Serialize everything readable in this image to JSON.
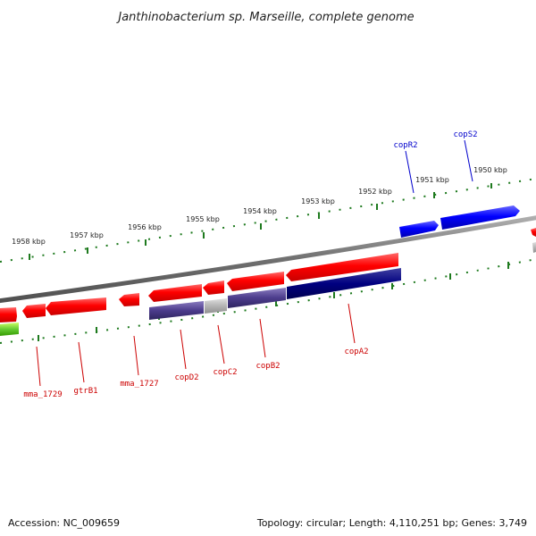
{
  "title": "Janthinobacterium sp. Marseille, complete genome",
  "footer": {
    "accession": "Accession: NC_009659",
    "summary": "Topology: circular; Length: 4,110,251 bp; Genes: 3,749"
  },
  "ticks": [
    "1950 kbp",
    "1951 kbp",
    "1952 kbp",
    "1953 kbp",
    "1954 kbp",
    "1955 kbp",
    "1956 kbp",
    "1957 kbp",
    "1958 kbp"
  ],
  "genes_top": [
    "copR2",
    "copS2"
  ],
  "genes_bottom": [
    "mma_1729",
    "gtrB1",
    "mma_1727",
    "copD2",
    "copC2",
    "copB2",
    "copA2"
  ],
  "colors": {
    "forward_cds": "#ff0000",
    "top_strand": "#0000ff",
    "cog_dark": "#000080",
    "cog_purple": "#4c3c8c",
    "cog_gray": "#b4b4b4",
    "cog_green": "#66cc33",
    "backbone": "#808080",
    "tick": "#1e7a1e",
    "label_top": "#0000cc",
    "label_bottom": "#cc0000"
  }
}
